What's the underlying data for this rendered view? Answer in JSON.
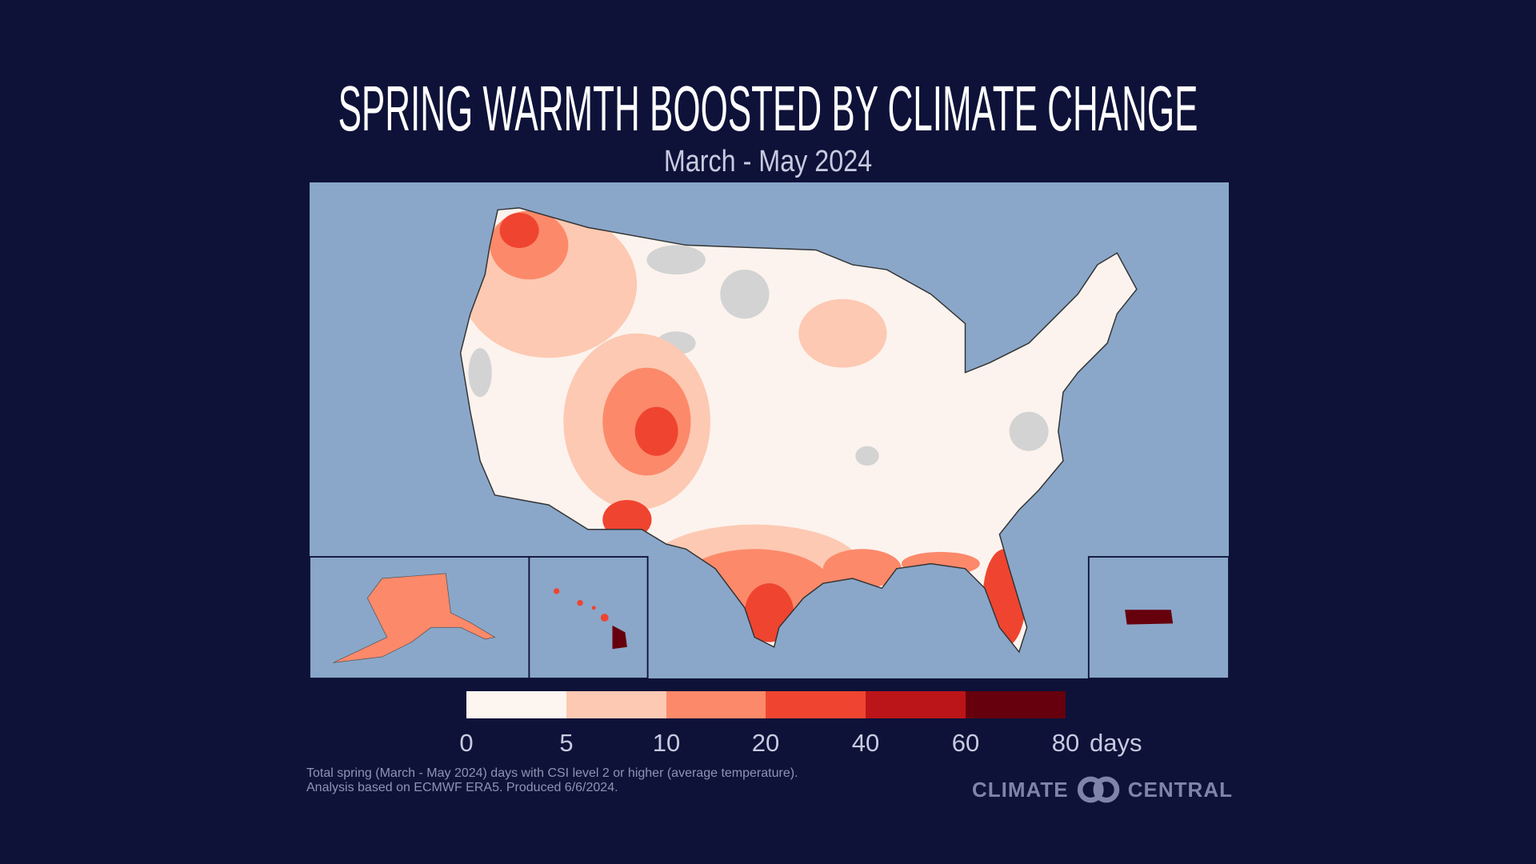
{
  "title": "SPRING WARMTH BOOSTED BY CLIMATE CHANGE",
  "subtitle": "March - May 2024",
  "colors": {
    "background": "#0f1238",
    "water": "#8aa6c8",
    "land": "#fdf3ee",
    "no_data": "#d3d3d3"
  },
  "legend": {
    "bins": [
      {
        "from": 0,
        "to": 5,
        "color": "#fdf5f0"
      },
      {
        "from": 5,
        "to": 10,
        "color": "#fdc9b2"
      },
      {
        "from": 10,
        "to": 20,
        "color": "#fc8a6a"
      },
      {
        "from": 20,
        "to": 40,
        "color": "#ef4530"
      },
      {
        "from": 40,
        "to": 60,
        "color": "#bb1419"
      },
      {
        "from": 60,
        "to": 80,
        "color": "#67000d"
      }
    ],
    "ticks": [
      "0",
      "5",
      "10",
      "20",
      "40",
      "60",
      "80"
    ],
    "unit": "days"
  },
  "note": [
    "Total spring (March - May 2024) days with CSI level 2 or higher (average temperature).",
    "Analysis based on ECMWF ERA5. Produced 6/6/2024."
  ],
  "logo": {
    "left": "CLIMATE",
    "right": "CENTRAL"
  }
}
